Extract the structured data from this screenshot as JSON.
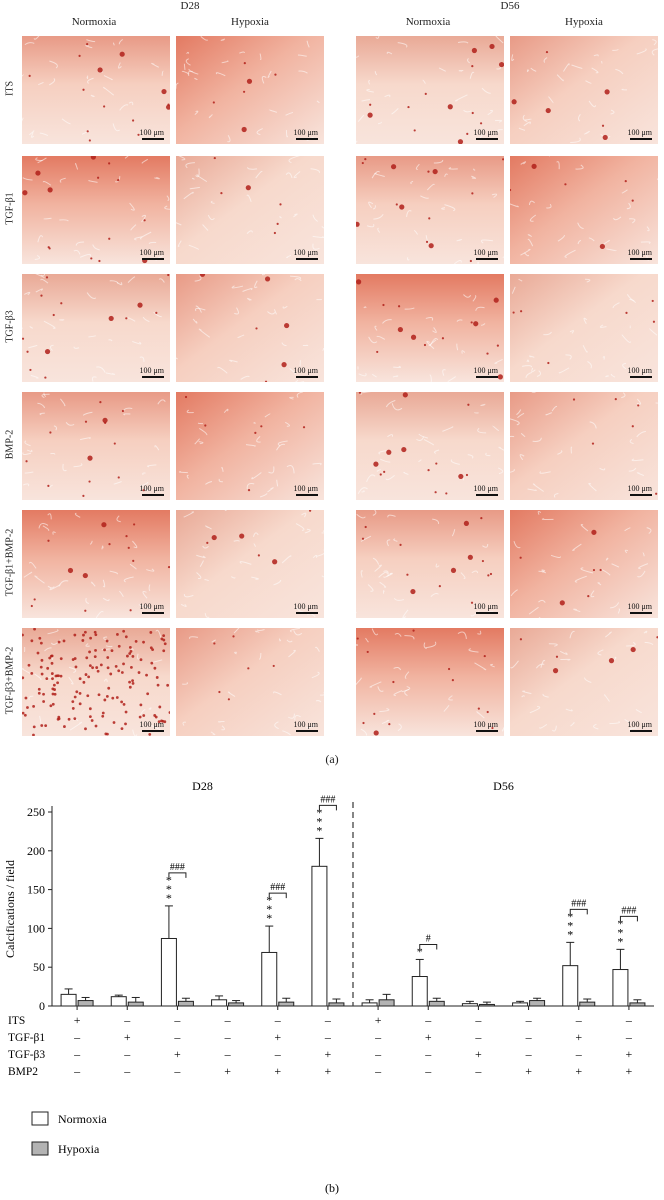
{
  "micrographs": {
    "time_labels": [
      "D28",
      "D56"
    ],
    "condition_labels": [
      "Normoxia",
      "Hypoxia",
      "Normoxia",
      "Hypoxia"
    ],
    "row_labels": [
      "ITS",
      "TGF-β1",
      "TGF-β3",
      "BMP-2",
      "TGF-β1+BMP-2",
      "TGF-β3+BMP-2"
    ],
    "scale_bar_label": "100 μm",
    "panel_label": "(a)"
  },
  "chart_panel_label": "(b)",
  "chart_data": {
    "type": "bar",
    "title": "",
    "group_labels": [
      "D28",
      "D56"
    ],
    "ylabel": "Calcifications / field",
    "ylim": [
      0,
      250
    ],
    "yticks": [
      0,
      50,
      100,
      150,
      200,
      250
    ],
    "grid": false,
    "legend_position": "bottom-left",
    "categories": [
      "D28 ITS",
      "D28 TGF-β1",
      "D28 TGF-β3",
      "D28 BMP2",
      "D28 TGF-β1+BMP2",
      "D28 TGF-β3+BMP2",
      "D56 ITS",
      "D56 TGF-β1",
      "D56 TGF-β3",
      "D56 BMP2",
      "D56 TGF-β1+BMP2",
      "D56 TGF-β3+BMP2"
    ],
    "series": [
      {
        "name": "Normoxia",
        "color": "#ffffff",
        "values": [
          15,
          12,
          87,
          8,
          69,
          180,
          4,
          38,
          3,
          4,
          52,
          47
        ],
        "errors": [
          7,
          2,
          42,
          5,
          34,
          36,
          4,
          22,
          3,
          2,
          30,
          26
        ]
      },
      {
        "name": "Hypoxia",
        "color": "#b3b3b3",
        "values": [
          7,
          5,
          6,
          4,
          5,
          4,
          8,
          6,
          2,
          7,
          5,
          4
        ],
        "errors": [
          4,
          6,
          4,
          3,
          5,
          5,
          7,
          4,
          3,
          3,
          4,
          4
        ]
      }
    ],
    "annotations": [
      {
        "category": 2,
        "stars": "***",
        "hash": "###"
      },
      {
        "category": 4,
        "stars": "***",
        "hash": "###"
      },
      {
        "category": 5,
        "stars": "***",
        "hash": "###"
      },
      {
        "category": 7,
        "stars": "*",
        "hash": "#"
      },
      {
        "category": 10,
        "stars": "***",
        "hash": "###"
      },
      {
        "category": 11,
        "stars": "***",
        "hash": "###"
      }
    ],
    "treatment_table": {
      "rows": [
        "ITS",
        "TGF-β1",
        "TGF-β3",
        "BMP2"
      ],
      "marks": [
        [
          "+",
          "–",
          "–",
          "–",
          "–",
          "–",
          "+",
          "–",
          "–",
          "–",
          "–",
          "–"
        ],
        [
          "–",
          "+",
          "–",
          "–",
          "+",
          "–",
          "–",
          "+",
          "–",
          "–",
          "+",
          "–"
        ],
        [
          "–",
          "–",
          "+",
          "–",
          "–",
          "+",
          "–",
          "–",
          "+",
          "–",
          "–",
          "+"
        ],
        [
          "–",
          "–",
          "–",
          "+",
          "+",
          "+",
          "–",
          "–",
          "–",
          "+",
          "+",
          "+"
        ]
      ]
    }
  }
}
